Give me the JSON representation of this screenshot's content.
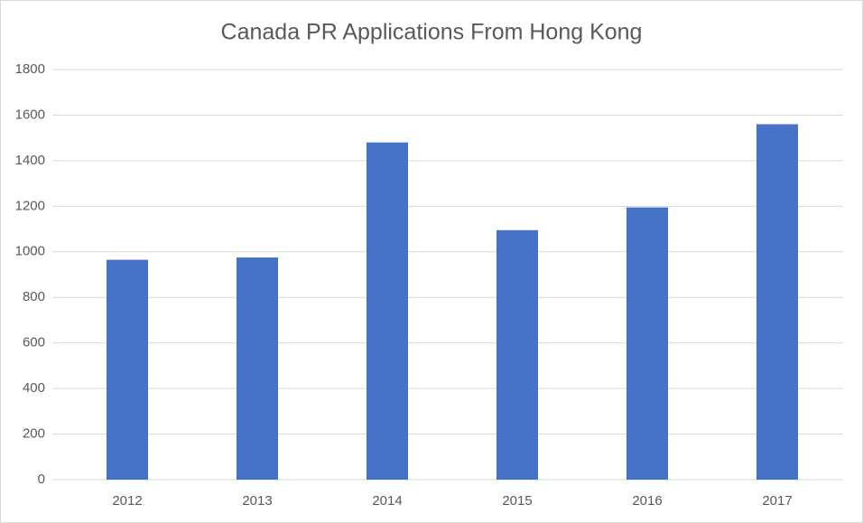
{
  "chart_data": {
    "type": "bar",
    "title": "Canada PR Applications From Hong Kong",
    "categories": [
      "2012",
      "2013",
      "2014",
      "2015",
      "2016",
      "2017"
    ],
    "values": [
      965,
      975,
      1480,
      1095,
      1195,
      1560
    ],
    "color": "#4472c4",
    "ylim": [
      0,
      1800
    ],
    "yticks": [
      0,
      200,
      400,
      600,
      800,
      1000,
      1200,
      1400,
      1600,
      1800
    ],
    "grid": true
  }
}
